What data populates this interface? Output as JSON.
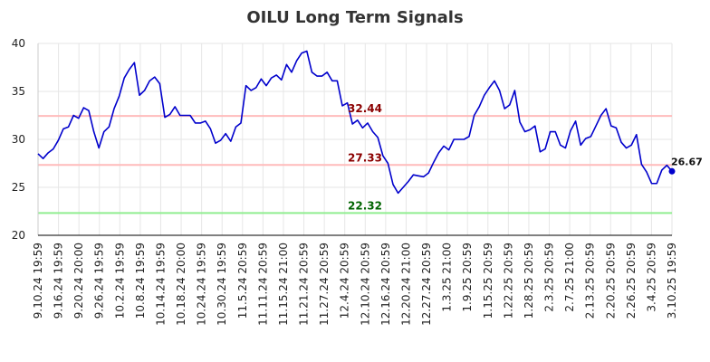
{
  "chart_data": {
    "type": "line",
    "title": "OILU Long Term Signals",
    "ylim": [
      20,
      40
    ],
    "yticks": [
      20,
      25,
      30,
      35,
      40
    ],
    "grid": true,
    "xtick_labels": [
      "9.10.24 19:59",
      "9.16.24 19:59",
      "9.20.24 20:00",
      "9.26.24 19:59",
      "10.2.24 19:59",
      "10.8.24 19:59",
      "10.14.24 19:59",
      "10.18.24 20:00",
      "10.24.24 19:59",
      "10.30.24 19:59",
      "11.5.24 20:59",
      "11.11.24 20:59",
      "11.15.24 21:00",
      "11.21.24 20:59",
      "11.27.24 20:59",
      "12.4.24 20:59",
      "12.10.24 20:59",
      "12.16.24 20:59",
      "12.20.24 21:00",
      "12.27.24 20:59",
      "1.3.25 21:00",
      "1.9.25 20:59",
      "1.15.25 20:59",
      "1.22.25 20:59",
      "1.28.25 20:59",
      "2.3.25 20:59",
      "2.7.25 21:00",
      "2.13.25 20:59",
      "2.20.25 20:59",
      "2.26.25 20:59",
      "3.4.25 20:59",
      "3.10.25 19:59"
    ],
    "series": [
      {
        "color": "#0000cc",
        "values": [
          28.5,
          28.0,
          28.6,
          29.0,
          29.9,
          31.1,
          31.3,
          32.5,
          32.2,
          33.3,
          33.0,
          30.8,
          29.1,
          30.8,
          31.3,
          33.2,
          34.5,
          36.4,
          37.3,
          38.0,
          34.6,
          35.1,
          36.1,
          36.5,
          35.8,
          32.3,
          32.6,
          33.4,
          32.5,
          32.5,
          32.5,
          31.7,
          31.7,
          31.9,
          31.1,
          29.6,
          29.9,
          30.6,
          29.8,
          31.3,
          31.7,
          35.6,
          35.1,
          35.4,
          36.3,
          35.6,
          36.4,
          36.7,
          36.2,
          37.8,
          37.0,
          38.2,
          39.0,
          39.2,
          37.0,
          36.6,
          36.6,
          37.0,
          36.1,
          36.1,
          33.5,
          33.8,
          31.6,
          32.0,
          31.2,
          31.7,
          30.8,
          30.2,
          28.3,
          27.5,
          25.3,
          24.4,
          25.0,
          25.6,
          26.3,
          26.2,
          26.1,
          26.5,
          27.6,
          28.6,
          29.3,
          28.9,
          30.0,
          30.0,
          30.0,
          30.3,
          32.5,
          33.4,
          34.6,
          35.4,
          36.1,
          35.1,
          33.2,
          33.6,
          35.1,
          31.8,
          30.8,
          31.0,
          31.4,
          28.7,
          29.0,
          30.8,
          30.8,
          29.4,
          29.1,
          30.9,
          31.9,
          29.4,
          30.1,
          30.3,
          31.4,
          32.5,
          33.2,
          31.4,
          31.2,
          29.7,
          29.1,
          29.4,
          30.5,
          27.4,
          26.6,
          25.4,
          25.4,
          26.8,
          27.3,
          26.67
        ]
      }
    ],
    "levels": [
      {
        "value": 32.44,
        "label": "32.44",
        "line_color": "#ffbbbb",
        "text_color": "#8b0000"
      },
      {
        "value": 27.33,
        "label": "27.33",
        "line_color": "#ffbbbb",
        "text_color": "#8b0000"
      },
      {
        "value": 22.32,
        "label": "22.32",
        "line_color": "#90ee90",
        "text_color": "#006400"
      }
    ],
    "last_value_label": "26.67"
  }
}
